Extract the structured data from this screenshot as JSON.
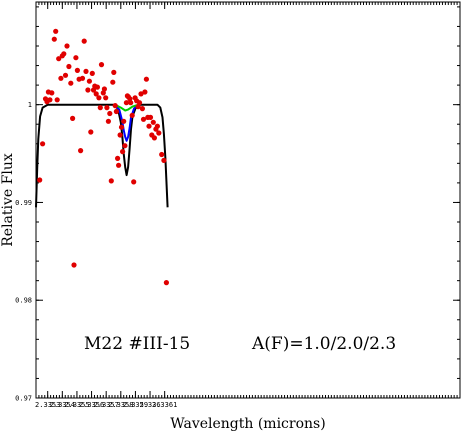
{
  "chart_data": {
    "type": "scatter",
    "xlabel": "Wavelength (microns)",
    "ylabel": "Relative Flux",
    "xlim": [
      2.33522,
      2.33812
    ],
    "ylim": [
      0.97,
      1.0105
    ],
    "xticks": [
      2.3353,
      2.3354,
      2.3355,
      2.3356,
      2.3357,
      2.3358,
      2.3359,
      2.336,
      2.3361
    ],
    "xtick_labels": [
      "2.3353",
      "2.3354",
      "2.3355",
      "2.3356",
      "2.3357",
      "2.3358",
      "2.3359",
      "2.336",
      "2.3361"
    ],
    "yticks": [
      0.97,
      0.98,
      0.99,
      1.0
    ],
    "ytick_labels": [
      "0.97",
      "0.98",
      "0.99",
      "1"
    ],
    "annotation_object": "M22 #III-15",
    "annotation_abundance": "A(F)=1.0/2.0/2.3",
    "observed": {
      "marker": "filled-circle",
      "color": "#e00000",
      "points": [
        [
          2.335245,
          0.9923
        ],
        [
          2.335265,
          0.996
        ],
        [
          2.335285,
          1.0006
        ],
        [
          2.335295,
          1.0003
        ],
        [
          2.335305,
          1.0013
        ],
        [
          2.335315,
          1.0005
        ],
        [
          2.335328,
          1.0012
        ],
        [
          2.335345,
          1.0067
        ],
        [
          2.335355,
          1.0075
        ],
        [
          2.335365,
          1.0005
        ],
        [
          2.335375,
          1.0047
        ],
        [
          2.33539,
          1.0027
        ],
        [
          2.3354,
          1.005
        ],
        [
          2.33541,
          1.0052
        ],
        [
          2.335422,
          1.003
        ],
        [
          2.335432,
          1.006
        ],
        [
          2.335445,
          1.0039
        ],
        [
          2.335458,
          1.0022
        ],
        [
          2.33547,
          0.9986
        ],
        [
          2.33548,
          0.9836
        ],
        [
          2.335493,
          1.0048
        ],
        [
          2.335503,
          1.0035
        ],
        [
          2.335515,
          1.0026
        ],
        [
          2.335525,
          0.9953
        ],
        [
          2.335538,
          1.0027
        ],
        [
          2.33555,
          1.0065
        ],
        [
          2.335562,
          1.0034
        ],
        [
          2.335575,
          1.0015
        ],
        [
          2.335585,
          1.0024
        ],
        [
          2.335595,
          0.9972
        ],
        [
          2.335605,
          1.0032
        ],
        [
          2.335613,
          1.0015
        ],
        [
          2.335622,
          1.0019
        ],
        [
          2.335632,
          1.0011
        ],
        [
          2.33564,
          1.0018
        ],
        [
          2.33565,
          1.0007
        ],
        [
          2.33566,
          0.9997
        ],
        [
          2.335668,
          1.0041
        ],
        [
          2.33568,
          1.0012
        ],
        [
          2.335688,
          1.0016
        ],
        [
          2.335697,
          1.0007
        ],
        [
          2.335705,
          0.9997
        ],
        [
          2.335715,
          0.9983
        ],
        [
          2.335725,
          0.9991
        ],
        [
          2.335735,
          0.9922
        ],
        [
          2.335745,
          1.0023
        ],
        [
          2.335752,
          1.0033
        ],
        [
          2.335762,
          0.9999
        ],
        [
          2.33577,
          0.9993
        ],
        [
          2.335778,
          0.9945
        ],
        [
          2.335785,
          0.9938
        ],
        [
          2.335795,
          0.9969
        ],
        [
          2.335805,
          0.9977
        ],
        [
          2.335812,
          0.9952
        ],
        [
          2.33582,
          0.9983
        ],
        [
          2.335828,
          0.9958
        ],
        [
          2.335838,
          1.0002
        ],
        [
          2.335845,
          1.0009
        ],
        [
          2.335852,
          1.0008
        ],
        [
          2.335862,
          1.0006
        ],
        [
          2.335868,
          1.0002
        ],
        [
          2.335878,
          0.9989
        ],
        [
          2.335888,
          0.9921
        ],
        [
          2.335898,
          1.0007
        ],
        [
          2.335908,
          1.0004
        ],
        [
          2.335918,
          0.9998
        ],
        [
          2.335928,
          1.0002
        ],
        [
          2.335938,
          1.0011
        ],
        [
          2.335948,
          0.9996
        ],
        [
          2.335955,
          0.9985
        ],
        [
          2.335965,
          1.0013
        ],
        [
          2.335975,
          1.0026
        ],
        [
          2.335985,
          0.9987
        ],
        [
          2.335993,
          0.9978
        ],
        [
          2.336003,
          0.9987
        ],
        [
          2.336012,
          0.9969
        ],
        [
          2.336022,
          0.9982
        ],
        [
          2.33603,
          0.9966
        ],
        [
          2.33604,
          0.9975
        ],
        [
          2.33605,
          0.9978
        ],
        [
          2.33606,
          0.9971
        ],
        [
          2.33608,
          0.9949
        ],
        [
          2.336095,
          0.9943
        ],
        [
          2.336112,
          0.9818
        ]
      ]
    },
    "models": [
      {
        "color": "#000000",
        "points": [
          [
            2.33522,
            0.9895
          ],
          [
            2.335228,
            0.9935
          ],
          [
            2.335236,
            0.9965
          ],
          [
            2.335248,
            0.9988
          ],
          [
            2.335265,
            0.9997
          ],
          [
            2.3353,
            1.0
          ],
          [
            2.33575,
            1.0
          ],
          [
            2.33578,
            0.9996
          ],
          [
            2.3358,
            0.9982
          ],
          [
            2.33581,
            0.9968
          ],
          [
            2.33582,
            0.995
          ],
          [
            2.33583,
            0.9936
          ],
          [
            2.33584,
            0.9928
          ],
          [
            2.33585,
            0.9936
          ],
          [
            2.33586,
            0.9955
          ],
          [
            2.33587,
            0.9975
          ],
          [
            2.33588,
            0.9988
          ],
          [
            2.3359,
            0.9996
          ],
          [
            2.33593,
            1.0
          ],
          [
            2.33605,
            1.0
          ],
          [
            2.33607,
            0.9997
          ],
          [
            2.336085,
            0.9987
          ],
          [
            2.336095,
            0.997
          ],
          [
            2.336105,
            0.9945
          ],
          [
            2.33612,
            0.9895
          ]
        ]
      },
      {
        "color": "#0000ff",
        "points": [
          [
            2.33576,
            1.0
          ],
          [
            2.33579,
            0.9995
          ],
          [
            2.33581,
            0.9983
          ],
          [
            2.33582,
            0.9974
          ],
          [
            2.33583,
            0.9967
          ],
          [
            2.33584,
            0.9963
          ],
          [
            2.33585,
            0.9967
          ],
          [
            2.33586,
            0.9976
          ],
          [
            2.33587,
            0.9987
          ],
          [
            2.33589,
            0.9996
          ],
          [
            2.33592,
            1.0
          ]
        ]
      },
      {
        "color": "#00cc00",
        "points": [
          [
            2.33576,
            1.0
          ],
          [
            2.3358,
            0.9997
          ],
          [
            2.33583,
            0.9994
          ],
          [
            2.33585,
            0.9995
          ],
          [
            2.33588,
            0.9998
          ],
          [
            2.33592,
            1.0
          ]
        ]
      }
    ]
  }
}
